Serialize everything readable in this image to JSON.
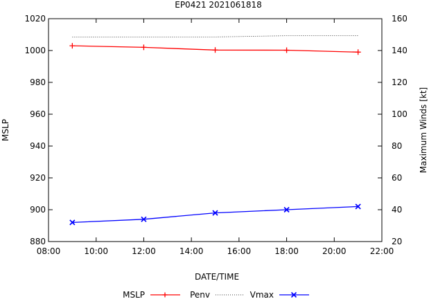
{
  "chart_data": {
    "type": "line",
    "title": "EP0421 2021061818",
    "xlabel": "DATE/TIME",
    "ylabel_left": "MSLP",
    "ylabel_right": "Maximum Winds [kt]",
    "x_ticks": [
      "08:00",
      "10:00",
      "12:00",
      "14:00",
      "16:00",
      "18:00",
      "20:00",
      "22:00"
    ],
    "x_tick_hours": [
      8,
      10,
      12,
      14,
      16,
      18,
      20,
      22
    ],
    "xlim_hours": [
      8,
      22
    ],
    "y_left_ticks": [
      880,
      900,
      920,
      940,
      960,
      980,
      1000,
      1020
    ],
    "ylim_left": [
      880,
      1020
    ],
    "y_right_ticks": [
      20,
      40,
      60,
      80,
      100,
      120,
      140,
      160
    ],
    "ylim_right": [
      20,
      160
    ],
    "x_hours": [
      9,
      12,
      15,
      18,
      21
    ],
    "series": [
      {
        "name": "MSLP",
        "axis": "left",
        "color": "#ff0000",
        "style": "line",
        "marker": "plus",
        "values": [
          1003,
          1002,
          1000.3,
          1000.2,
          999
        ]
      },
      {
        "name": "Penv",
        "axis": "left",
        "color": "#000000",
        "style": "dotted",
        "marker": "none",
        "values": [
          1008.5,
          1008.5,
          1008.5,
          1009.3,
          1009.3
        ]
      },
      {
        "name": "Vmax",
        "axis": "right",
        "color": "#0000ff",
        "style": "line",
        "marker": "x",
        "values": [
          32,
          34,
          38,
          40,
          42
        ]
      }
    ],
    "legend_position": "bottom"
  }
}
